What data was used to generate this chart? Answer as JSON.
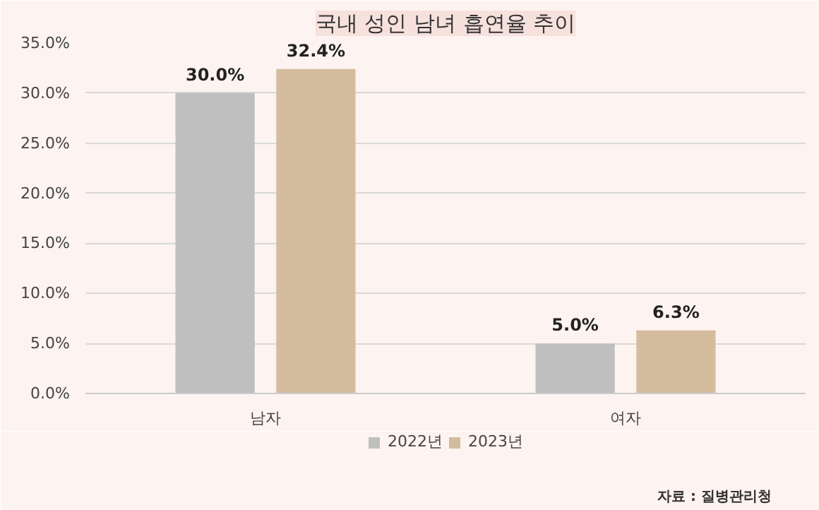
{
  "chart_data": {
    "type": "bar",
    "title": "국내 성인 남녀 흡연율 추이",
    "categories": [
      "남자",
      "여자"
    ],
    "series": [
      {
        "name": "2022년",
        "color": "#bfbfbf",
        "values": [
          30.0,
          5.0
        ],
        "value_labels": [
          "30.0%",
          "5.0%"
        ]
      },
      {
        "name": "2023년",
        "color": "#d4bc9e",
        "values": [
          32.4,
          6.3
        ],
        "value_labels": [
          "32.4%",
          "6.3%"
        ]
      }
    ],
    "ylim": [
      0,
      35
    ],
    "yticks": [
      {
        "value": 0,
        "label": "0.0%"
      },
      {
        "value": 5,
        "label": "5.0%"
      },
      {
        "value": 10,
        "label": "10.0%"
      },
      {
        "value": 15,
        "label": "15.0%"
      },
      {
        "value": 20,
        "label": "20.0%"
      },
      {
        "value": 25,
        "label": "25.0%"
      },
      {
        "value": 30,
        "label": "30.0%"
      },
      {
        "value": 35,
        "label": "35.0%"
      }
    ],
    "grid": "y",
    "legend": "bottom",
    "annotations": [
      "자료 : 질병관리청"
    ]
  }
}
